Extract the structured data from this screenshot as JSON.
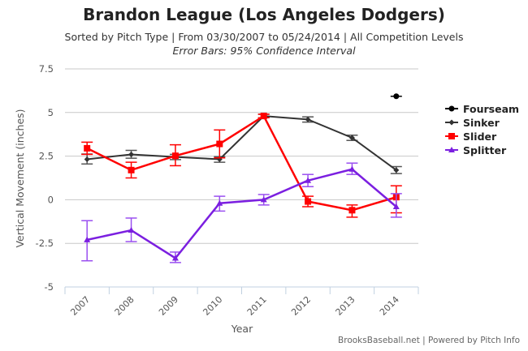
{
  "chart_data": {
    "type": "line",
    "title": "Brandon League (Los Angeles Dodgers)",
    "subtitle": "Sorted by Pitch Type | From 03/30/2007 to 05/24/2014 | All Competition Levels",
    "subtitle2": "Error Bars: 95% Confidence Interval",
    "xlabel": "Year",
    "ylabel": "Vertical Movement (inches)",
    "categories": [
      "2007",
      "2008",
      "2009",
      "2010",
      "2011",
      "2012",
      "2013",
      "2014"
    ],
    "ylim": [
      -5,
      7.5
    ],
    "yticks": [
      7.5,
      5,
      2.5,
      0,
      -2.5,
      -5
    ],
    "ytick_labels": [
      "7.5",
      "5",
      "2.5",
      "0",
      "-2.5",
      "-5"
    ],
    "grid": true,
    "legend_position": "right",
    "series": [
      {
        "name": "Fourseam",
        "color": "#000000",
        "marker": "circle",
        "values": [
          null,
          null,
          null,
          null,
          null,
          null,
          null,
          5.93
        ],
        "err_low": [
          null,
          null,
          null,
          null,
          null,
          null,
          null,
          5.93
        ],
        "err_high": [
          null,
          null,
          null,
          null,
          null,
          null,
          null,
          5.93
        ]
      },
      {
        "name": "Sinker",
        "color": "#333333",
        "marker": "diamond",
        "values": [
          2.32,
          2.6,
          2.45,
          2.32,
          4.8,
          4.6,
          3.55,
          1.7
        ],
        "err_low": [
          2.05,
          2.38,
          2.3,
          2.15,
          4.7,
          4.45,
          3.4,
          1.5
        ],
        "err_high": [
          2.62,
          2.83,
          2.6,
          2.47,
          4.9,
          4.75,
          3.7,
          1.9
        ]
      },
      {
        "name": "Slider",
        "color": "#ff0000",
        "marker": "square",
        "values": [
          2.95,
          1.7,
          2.52,
          3.2,
          4.8,
          -0.1,
          -0.6,
          0.15
        ],
        "err_low": [
          2.6,
          1.25,
          1.95,
          2.4,
          4.7,
          -0.4,
          -1.0,
          -0.75
        ],
        "err_high": [
          3.3,
          2.15,
          3.15,
          4.0,
          4.9,
          0.2,
          -0.3,
          0.8
        ]
      },
      {
        "name": "Splitter",
        "color": "#7b1fe0",
        "marker": "triangle",
        "values": [
          -2.3,
          -1.75,
          -3.35,
          -0.2,
          0.0,
          1.1,
          1.75,
          -0.4
        ],
        "err_low": [
          -3.5,
          -2.4,
          -3.6,
          -0.65,
          -0.3,
          0.75,
          1.45,
          -1.0
        ],
        "err_high": [
          -1.2,
          -1.05,
          -3.0,
          0.2,
          0.3,
          1.45,
          2.1,
          0.35
        ]
      }
    ]
  },
  "credit": "BrooksBaseball.net | Powered by Pitch Info"
}
